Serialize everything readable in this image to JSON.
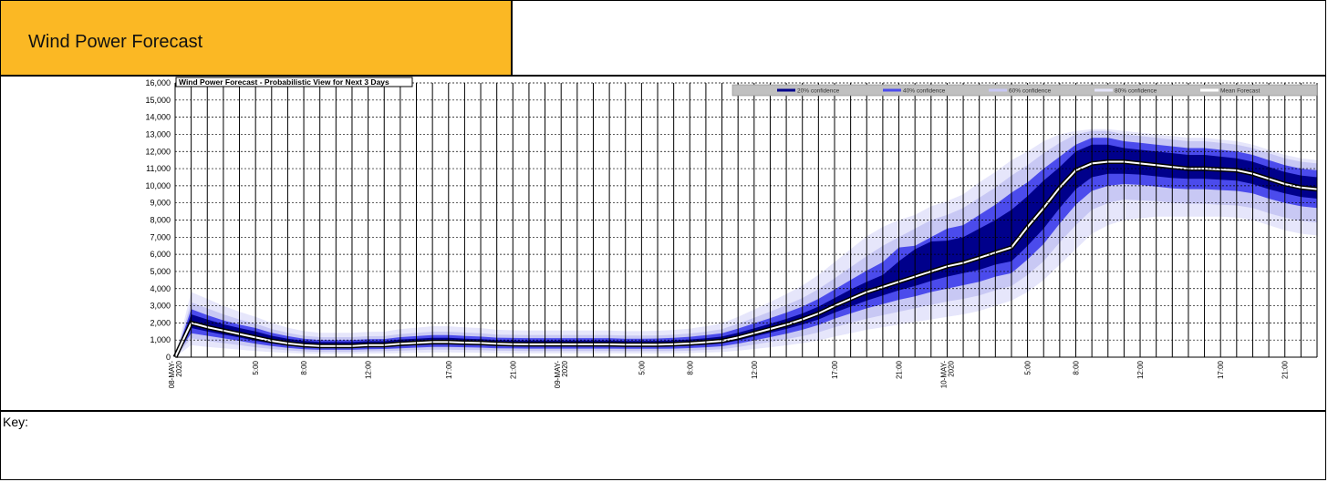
{
  "header": {
    "title": "Wind Power Forecast"
  },
  "key_label": "Key:",
  "colors": {
    "header_bg": "#fbb824",
    "band_20": "#00008b",
    "band_40": "#4b4bec",
    "band_60": "#c8c8f4",
    "band_80": "#e6e6fb",
    "mean": "#ffffff",
    "outline": "#000000",
    "legend_bg": "#c0c0c0"
  },
  "chart_data": {
    "type": "area",
    "title": "Wind Power Forecast - Probabilistic View for Next 3 Days",
    "xlabel": "",
    "ylabel": "",
    "ylim": [
      0,
      16000
    ],
    "yticks": [
      0,
      1000,
      2000,
      3000,
      4000,
      5000,
      6000,
      7000,
      8000,
      9000,
      10000,
      11000,
      12000,
      13000,
      14000,
      15000,
      16000
    ],
    "ytick_labels": [
      "0",
      "1,000",
      "2,000",
      "3,000",
      "4,000",
      "5,000",
      "6,000",
      "7,000",
      "8,000",
      "9,000",
      "10,000",
      "11,000",
      "12,000",
      "13,000",
      "14,000",
      "15,000",
      "16,000"
    ],
    "x_unit": "hours",
    "x_range": [
      0,
      71
    ],
    "xtick_hours": [
      0,
      5,
      8,
      12,
      17,
      21,
      24,
      29,
      32,
      36,
      41,
      45,
      48,
      53,
      56,
      60,
      65,
      69
    ],
    "xtick_labels": [
      "08-MAY-2020",
      "5:00",
      "8:00",
      "12:00",
      "17:00",
      "21:00",
      "09-MAY-2020",
      "5:00",
      "8:00",
      "12:00",
      "17:00",
      "21:00",
      "10-MAY-2020",
      "5:00",
      "8:00",
      "12:00",
      "17:00",
      "21:00"
    ],
    "grid": true,
    "legend_position": "top-right",
    "legend": [
      "20% confidence",
      "40% confidence",
      "60% confidence",
      "80% confidence",
      "Mean Forecast"
    ],
    "x_hours": [
      0,
      1,
      2,
      3,
      4,
      5,
      6,
      7,
      8,
      9,
      10,
      11,
      12,
      13,
      14,
      15,
      16,
      17,
      18,
      19,
      20,
      21,
      22,
      23,
      24,
      25,
      26,
      27,
      28,
      29,
      30,
      31,
      32,
      33,
      34,
      35,
      36,
      37,
      38,
      39,
      40,
      41,
      42,
      43,
      44,
      45,
      46,
      47,
      48,
      49,
      50,
      51,
      52,
      53,
      54,
      55,
      56,
      57,
      58,
      59,
      60,
      61,
      62,
      63,
      64,
      65,
      66,
      67,
      68,
      69,
      70,
      71
    ],
    "mean": [
      0,
      2000,
      1750,
      1550,
      1350,
      1150,
      950,
      800,
      700,
      650,
      650,
      650,
      700,
      700,
      780,
      830,
      880,
      880,
      850,
      830,
      780,
      760,
      750,
      750,
      750,
      750,
      750,
      750,
      730,
      730,
      730,
      760,
      800,
      870,
      950,
      1150,
      1400,
      1650,
      1900,
      2200,
      2550,
      3000,
      3400,
      3800,
      4100,
      4400,
      4700,
      5000,
      5300,
      5500,
      5800,
      6100,
      6400,
      7600,
      8700,
      9900,
      10900,
      11300,
      11400,
      11400,
      11300,
      11200,
      11100,
      11000,
      11000,
      10950,
      10900,
      10700,
      10400,
      10100,
      9900,
      9800
    ],
    "band_20": [
      [
        0,
        0
      ],
      [
        1700,
        2500
      ],
      [
        1500,
        2200
      ],
      [
        1320,
        1920
      ],
      [
        1150,
        1700
      ],
      [
        950,
        1500
      ],
      [
        800,
        1250
      ],
      [
        680,
        1080
      ],
      [
        580,
        950
      ],
      [
        540,
        880
      ],
      [
        540,
        880
      ],
      [
        540,
        880
      ],
      [
        580,
        930
      ],
      [
        600,
        930
      ],
      [
        650,
        1030
      ],
      [
        700,
        1080
      ],
      [
        740,
        1130
      ],
      [
        740,
        1130
      ],
      [
        720,
        1080
      ],
      [
        700,
        1050
      ],
      [
        650,
        1000
      ],
      [
        640,
        980
      ],
      [
        630,
        970
      ],
      [
        630,
        970
      ],
      [
        630,
        970
      ],
      [
        630,
        970
      ],
      [
        630,
        970
      ],
      [
        630,
        970
      ],
      [
        610,
        940
      ],
      [
        610,
        940
      ],
      [
        610,
        950
      ],
      [
        630,
        980
      ],
      [
        670,
        1030
      ],
      [
        730,
        1100
      ],
      [
        800,
        1200
      ],
      [
        980,
        1420
      ],
      [
        1200,
        1680
      ],
      [
        1420,
        1950
      ],
      [
        1650,
        2230
      ],
      [
        1900,
        2550
      ],
      [
        2200,
        2950
      ],
      [
        2600,
        3450
      ],
      [
        2950,
        3950
      ],
      [
        3300,
        4400
      ],
      [
        3600,
        4800
      ],
      [
        3900,
        5600
      ],
      [
        4150,
        6300
      ],
      [
        4450,
        6750
      ],
      [
        4700,
        6800
      ],
      [
        4900,
        7000
      ],
      [
        5100,
        7500
      ],
      [
        5400,
        8000
      ],
      [
        5600,
        8600
      ],
      [
        6500,
        9400
      ],
      [
        7500,
        10300
      ],
      [
        8700,
        11100
      ],
      [
        9800,
        12000
      ],
      [
        10500,
        12400
      ],
      [
        10700,
        12400
      ],
      [
        10700,
        12200
      ],
      [
        10650,
        12100
      ],
      [
        10550,
        12000
      ],
      [
        10450,
        11900
      ],
      [
        10400,
        11800
      ],
      [
        10400,
        11800
      ],
      [
        10350,
        11700
      ],
      [
        10300,
        11600
      ],
      [
        10100,
        11400
      ],
      [
        9800,
        11100
      ],
      [
        9550,
        10800
      ],
      [
        9350,
        10600
      ],
      [
        9250,
        10500
      ]
    ],
    "band_40": [
      [
        0,
        0
      ],
      [
        1400,
        2800
      ],
      [
        1250,
        2450
      ],
      [
        1100,
        2150
      ],
      [
        950,
        1900
      ],
      [
        780,
        1700
      ],
      [
        650,
        1420
      ],
      [
        550,
        1230
      ],
      [
        470,
        1080
      ],
      [
        430,
        1000
      ],
      [
        430,
        1000
      ],
      [
        430,
        1000
      ],
      [
        470,
        1050
      ],
      [
        480,
        1060
      ],
      [
        520,
        1170
      ],
      [
        560,
        1230
      ],
      [
        600,
        1290
      ],
      [
        600,
        1290
      ],
      [
        580,
        1240
      ],
      [
        560,
        1200
      ],
      [
        520,
        1140
      ],
      [
        510,
        1120
      ],
      [
        500,
        1110
      ],
      [
        500,
        1110
      ],
      [
        500,
        1110
      ],
      [
        500,
        1110
      ],
      [
        500,
        1110
      ],
      [
        500,
        1110
      ],
      [
        490,
        1080
      ],
      [
        490,
        1080
      ],
      [
        490,
        1090
      ],
      [
        500,
        1130
      ],
      [
        530,
        1190
      ],
      [
        580,
        1280
      ],
      [
        640,
        1400
      ],
      [
        790,
        1670
      ],
      [
        980,
        1970
      ],
      [
        1170,
        2280
      ],
      [
        1370,
        2600
      ],
      [
        1600,
        2950
      ],
      [
        1880,
        3400
      ],
      [
        2250,
        3950
      ],
      [
        2550,
        4500
      ],
      [
        2850,
        5050
      ],
      [
        3100,
        5550
      ],
      [
        3350,
        6400
      ],
      [
        3550,
        6500
      ],
      [
        3800,
        7000
      ],
      [
        4000,
        7500
      ],
      [
        4200,
        7700
      ],
      [
        4400,
        8300
      ],
      [
        4700,
        8900
      ],
      [
        4900,
        9600
      ],
      [
        5700,
        10200
      ],
      [
        6600,
        11000
      ],
      [
        7800,
        11700
      ],
      [
        8900,
        12400
      ],
      [
        9700,
        12800
      ],
      [
        10000,
        12800
      ],
      [
        10100,
        12600
      ],
      [
        10050,
        12500
      ],
      [
        9950,
        12400
      ],
      [
        9850,
        12300
      ],
      [
        9800,
        12200
      ],
      [
        9800,
        12200
      ],
      [
        9750,
        12100
      ],
      [
        9700,
        12000
      ],
      [
        9550,
        11800
      ],
      [
        9250,
        11500
      ],
      [
        9000,
        11200
      ],
      [
        8800,
        11000
      ],
      [
        8700,
        10900
      ]
    ],
    "band_60": [
      [
        0,
        0
      ],
      [
        1100,
        3200
      ],
      [
        950,
        2850
      ],
      [
        820,
        2500
      ],
      [
        700,
        2200
      ],
      [
        580,
        1950
      ],
      [
        480,
        1650
      ],
      [
        400,
        1420
      ],
      [
        340,
        1250
      ],
      [
        310,
        1170
      ],
      [
        310,
        1170
      ],
      [
        310,
        1170
      ],
      [
        340,
        1220
      ],
      [
        350,
        1230
      ],
      [
        380,
        1350
      ],
      [
        410,
        1420
      ],
      [
        440,
        1490
      ],
      [
        440,
        1490
      ],
      [
        420,
        1440
      ],
      [
        410,
        1400
      ],
      [
        380,
        1320
      ],
      [
        370,
        1300
      ],
      [
        360,
        1290
      ],
      [
        360,
        1290
      ],
      [
        360,
        1290
      ],
      [
        360,
        1290
      ],
      [
        360,
        1290
      ],
      [
        360,
        1290
      ],
      [
        350,
        1260
      ],
      [
        350,
        1260
      ],
      [
        350,
        1270
      ],
      [
        360,
        1310
      ],
      [
        380,
        1380
      ],
      [
        420,
        1490
      ],
      [
        470,
        1630
      ],
      [
        590,
        1950
      ],
      [
        740,
        2300
      ],
      [
        890,
        2660
      ],
      [
        1050,
        3040
      ],
      [
        1230,
        3450
      ],
      [
        1450,
        3970
      ],
      [
        1750,
        4600
      ],
      [
        2000,
        5250
      ],
      [
        2250,
        5900
      ],
      [
        2450,
        6500
      ],
      [
        2650,
        7000
      ],
      [
        2850,
        7500
      ],
      [
        3050,
        8000
      ],
      [
        3250,
        8300
      ],
      [
        3400,
        8700
      ],
      [
        3600,
        9300
      ],
      [
        3900,
        9900
      ],
      [
        4150,
        10600
      ],
      [
        4800,
        11200
      ],
      [
        5600,
        11900
      ],
      [
        6700,
        12500
      ],
      [
        7700,
        13000
      ],
      [
        8600,
        13200
      ],
      [
        9000,
        13200
      ],
      [
        9200,
        13000
      ],
      [
        9150,
        12900
      ],
      [
        9100,
        12800
      ],
      [
        9000,
        12700
      ],
      [
        8950,
        12600
      ],
      [
        8950,
        12600
      ],
      [
        8900,
        12500
      ],
      [
        8850,
        12400
      ],
      [
        8700,
        12200
      ],
      [
        8400,
        11900
      ],
      [
        8150,
        11600
      ],
      [
        7950,
        11400
      ],
      [
        7850,
        11300
      ]
    ],
    "band_80": [
      [
        0,
        0
      ],
      [
        700,
        3800
      ],
      [
        600,
        3400
      ],
      [
        520,
        3000
      ],
      [
        440,
        2650
      ],
      [
        360,
        2350
      ],
      [
        300,
        2000
      ],
      [
        250,
        1720
      ],
      [
        210,
        1520
      ],
      [
        190,
        1420
      ],
      [
        190,
        1420
      ],
      [
        190,
        1420
      ],
      [
        210,
        1480
      ],
      [
        220,
        1490
      ],
      [
        240,
        1640
      ],
      [
        260,
        1720
      ],
      [
        280,
        1800
      ],
      [
        280,
        1800
      ],
      [
        270,
        1740
      ],
      [
        260,
        1700
      ],
      [
        240,
        1600
      ],
      [
        230,
        1570
      ],
      [
        230,
        1560
      ],
      [
        230,
        1560
      ],
      [
        230,
        1560
      ],
      [
        230,
        1560
      ],
      [
        230,
        1560
      ],
      [
        230,
        1560
      ],
      [
        220,
        1520
      ],
      [
        220,
        1520
      ],
      [
        220,
        1540
      ],
      [
        230,
        1590
      ],
      [
        240,
        1670
      ],
      [
        270,
        1800
      ],
      [
        300,
        1970
      ],
      [
        380,
        2350
      ],
      [
        480,
        2780
      ],
      [
        580,
        3220
      ],
      [
        690,
        3680
      ],
      [
        820,
        4180
      ],
      [
        980,
        4800
      ],
      [
        1200,
        5550
      ],
      [
        1400,
        6300
      ],
      [
        1600,
        7050
      ],
      [
        1750,
        7600
      ],
      [
        1900,
        8000
      ],
      [
        2050,
        8300
      ],
      [
        2200,
        8800
      ],
      [
        2350,
        9100
      ],
      [
        2500,
        9500
      ],
      [
        2700,
        10200
      ],
      [
        3000,
        10800
      ],
      [
        3300,
        11500
      ],
      [
        3800,
        12000
      ],
      [
        4500,
        12600
      ],
      [
        5400,
        13000
      ],
      [
        6300,
        13200
      ],
      [
        7200,
        13300
      ],
      [
        7700,
        13300
      ],
      [
        8000,
        13200
      ],
      [
        8100,
        13100
      ],
      [
        8200,
        13000
      ],
      [
        8200,
        12900
      ],
      [
        8200,
        12800
      ],
      [
        8200,
        12800
      ],
      [
        8200,
        12700
      ],
      [
        8150,
        12600
      ],
      [
        8000,
        12400
      ],
      [
        7700,
        12100
      ],
      [
        7400,
        11800
      ],
      [
        7200,
        11600
      ],
      [
        7100,
        11500
      ]
    ]
  }
}
